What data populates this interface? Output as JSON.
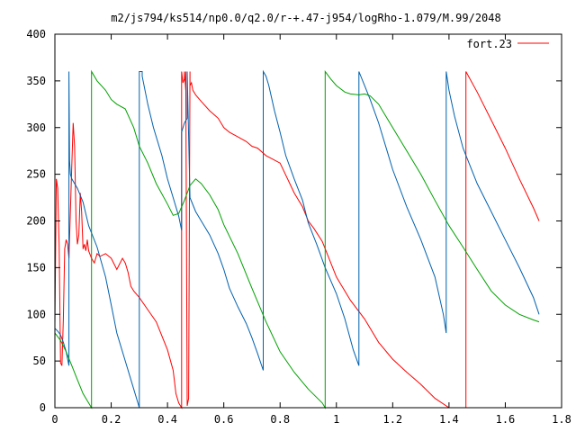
{
  "chart_data": {
    "type": "line",
    "title": "m2/js794/ks514/np0.0/q2.0/r-+.47-j954/logRho-1.079/M.99/2048",
    "xlabel": "",
    "ylabel": "",
    "xlim": [
      0,
      1.8
    ],
    "ylim": [
      0,
      400
    ],
    "x_ticks": [
      {
        "v": 0,
        "label": "0"
      },
      {
        "v": 0.2,
        "label": "0.2"
      },
      {
        "v": 0.4,
        "label": "0.4"
      },
      {
        "v": 0.6,
        "label": "0.6"
      },
      {
        "v": 0.8,
        "label": "0.8"
      },
      {
        "v": 1.0,
        "label": "1"
      },
      {
        "v": 1.2,
        "label": "1.2"
      },
      {
        "v": 1.4,
        "label": "1.4"
      },
      {
        "v": 1.6,
        "label": "1.6"
      },
      {
        "v": 1.8,
        "label": "1.8"
      }
    ],
    "y_ticks": [
      {
        "v": 0,
        "label": "0"
      },
      {
        "v": 50,
        "label": "50"
      },
      {
        "v": 100,
        "label": "100"
      },
      {
        "v": 150,
        "label": "150"
      },
      {
        "v": 200,
        "label": "200"
      },
      {
        "v": 250,
        "label": "250"
      },
      {
        "v": 300,
        "label": "300"
      },
      {
        "v": 350,
        "label": "350"
      },
      {
        "v": 400,
        "label": "400"
      }
    ],
    "grid": false,
    "legend_position": "top-right",
    "legend": [
      {
        "label": "fort.23",
        "color": "#ff0000"
      }
    ],
    "series": [
      {
        "name": "fort.23",
        "color": "#ff0000",
        "x": [
          0.0,
          0.005,
          0.01,
          0.015,
          0.02,
          0.025,
          0.03,
          0.035,
          0.04,
          0.045,
          0.05,
          0.055,
          0.06,
          0.065,
          0.07,
          0.075,
          0.08,
          0.085,
          0.09,
          0.095,
          0.1,
          0.105,
          0.11,
          0.115,
          0.12,
          0.13,
          0.14,
          0.15,
          0.16,
          0.18,
          0.2,
          0.22,
          0.24,
          0.25,
          0.26,
          0.27,
          0.28,
          0.3,
          0.33,
          0.36,
          0.4,
          0.42,
          0.43,
          0.44,
          0.45,
          0.45,
          0.455,
          0.46,
          0.46,
          0.465,
          0.465,
          0.47,
          0.475,
          0.48,
          0.48,
          0.485,
          0.49,
          0.5,
          0.52,
          0.55,
          0.58,
          0.6,
          0.62,
          0.65,
          0.68,
          0.7,
          0.72,
          0.75,
          0.8,
          0.85,
          0.88,
          0.9,
          0.92,
          0.95,
          1.0,
          1.05,
          1.1,
          1.15,
          1.2,
          1.25,
          1.3,
          1.35,
          1.4,
          1.43,
          1.455,
          1.46,
          1.46,
          1.5,
          1.55,
          1.6,
          1.65,
          1.7,
          1.72
        ],
        "y": [
          88,
          245,
          235,
          175,
          48,
          45,
          95,
          170,
          180,
          175,
          160,
          210,
          260,
          305,
          280,
          200,
          175,
          185,
          230,
          210,
          170,
          175,
          168,
          180,
          168,
          160,
          155,
          165,
          162,
          165,
          160,
          148,
          160,
          155,
          145,
          130,
          125,
          118,
          105,
          92,
          62,
          40,
          15,
          5,
          0,
          360,
          348,
          352,
          360,
          340,
          360,
          2,
          10,
          360,
          345,
          348,
          340,
          335,
          328,
          318,
          310,
          300,
          295,
          290,
          285,
          280,
          278,
          270,
          262,
          230,
          215,
          200,
          192,
          178,
          140,
          115,
          95,
          70,
          52,
          38,
          25,
          10,
          0,
          0,
          0,
          0,
          360,
          338,
          308,
          278,
          245,
          214,
          200
        ]
      },
      {
        "name": "",
        "color": "#0060ad",
        "x": [
          0.0,
          0.01,
          0.02,
          0.03,
          0.04,
          0.05,
          0.05,
          0.052,
          0.055,
          0.06,
          0.08,
          0.1,
          0.12,
          0.15,
          0.18,
          0.2,
          0.22,
          0.25,
          0.28,
          0.3,
          0.3,
          0.31,
          0.31,
          0.33,
          0.35,
          0.38,
          0.4,
          0.42,
          0.44,
          0.45,
          0.45,
          0.46,
          0.47,
          0.47,
          0.48,
          0.5,
          0.52,
          0.55,
          0.58,
          0.6,
          0.62,
          0.65,
          0.68,
          0.7,
          0.72,
          0.74,
          0.74,
          0.75,
          0.76,
          0.78,
          0.8,
          0.82,
          0.85,
          0.88,
          0.9,
          0.93,
          0.96,
          1.0,
          1.03,
          1.06,
          1.08,
          1.08,
          1.1,
          1.12,
          1.15,
          1.18,
          1.2,
          1.25,
          1.3,
          1.35,
          1.38,
          1.39,
          1.39,
          1.4,
          1.42,
          1.45,
          1.5,
          1.55,
          1.6,
          1.65,
          1.7,
          1.72
        ],
        "y": [
          85,
          82,
          78,
          70,
          60,
          45,
          360,
          265,
          250,
          245,
          235,
          220,
          195,
          172,
          140,
          110,
          80,
          50,
          20,
          0,
          360,
          360,
          355,
          325,
          300,
          270,
          245,
          225,
          205,
          190,
          295,
          305,
          310,
          360,
          225,
          210,
          200,
          185,
          165,
          148,
          128,
          108,
          90,
          75,
          58,
          40,
          360,
          355,
          345,
          318,
          295,
          270,
          245,
          222,
          198,
          175,
          150,
          122,
          95,
          62,
          45,
          360,
          345,
          330,
          305,
          275,
          255,
          215,
          180,
          140,
          100,
          80,
          360,
          340,
          312,
          278,
          240,
          210,
          180,
          150,
          118,
          100
        ]
      },
      {
        "name": "",
        "color": "#00a000",
        "x": [
          0.0,
          0.02,
          0.04,
          0.06,
          0.08,
          0.1,
          0.12,
          0.13,
          0.13,
          0.15,
          0.18,
          0.2,
          0.22,
          0.25,
          0.28,
          0.3,
          0.33,
          0.36,
          0.4,
          0.42,
          0.44,
          0.46,
          0.48,
          0.5,
          0.52,
          0.55,
          0.58,
          0.6,
          0.65,
          0.7,
          0.75,
          0.8,
          0.85,
          0.9,
          0.95,
          0.96,
          0.96,
          0.98,
          1.0,
          1.03,
          1.05,
          1.08,
          1.1,
          1.12,
          1.15,
          1.2,
          1.25,
          1.3,
          1.35,
          1.4,
          1.45,
          1.5,
          1.55,
          1.6,
          1.65,
          1.7,
          1.72
        ],
        "y": [
          80,
          72,
          60,
          45,
          30,
          15,
          5,
          0,
          360,
          350,
          340,
          330,
          325,
          320,
          300,
          280,
          262,
          240,
          218,
          206,
          208,
          222,
          238,
          245,
          240,
          228,
          212,
          196,
          165,
          128,
          92,
          60,
          38,
          20,
          5,
          0,
          360,
          352,
          345,
          338,
          336,
          335,
          336,
          334,
          325,
          300,
          275,
          250,
          222,
          195,
          172,
          148,
          125,
          110,
          100,
          94,
          92
        ]
      }
    ]
  }
}
